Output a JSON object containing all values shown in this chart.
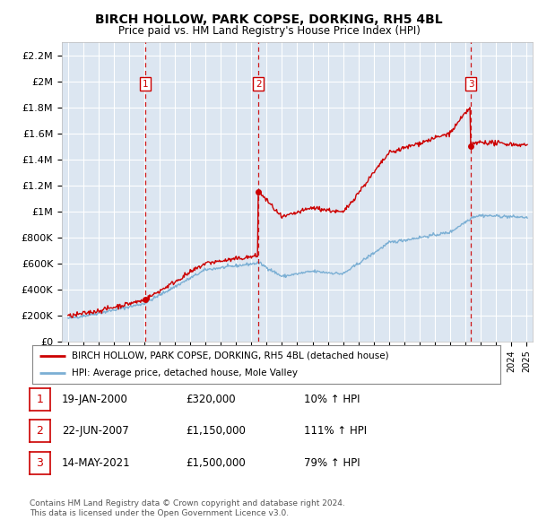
{
  "title": "BIRCH HOLLOW, PARK COPSE, DORKING, RH5 4BL",
  "subtitle": "Price paid vs. HM Land Registry's House Price Index (HPI)",
  "legend_line1": "BIRCH HOLLOW, PARK COPSE, DORKING, RH5 4BL (detached house)",
  "legend_line2": "HPI: Average price, detached house, Mole Valley",
  "footer1": "Contains HM Land Registry data © Crown copyright and database right 2024.",
  "footer2": "This data is licensed under the Open Government Licence v3.0.",
  "transactions": [
    {
      "num": 1,
      "date": "19-JAN-2000",
      "price": 320000,
      "pct": "10%",
      "x": 2000.05
    },
    {
      "num": 2,
      "date": "22-JUN-2007",
      "price": 1150000,
      "pct": "111%",
      "x": 2007.47
    },
    {
      "num": 3,
      "date": "14-MAY-2021",
      "price": 1500000,
      "pct": "79%",
      "x": 2021.37
    }
  ],
  "table_rows": [
    [
      "1",
      "19-JAN-2000",
      "£320,000",
      "10% ↑ HPI"
    ],
    [
      "2",
      "22-JUN-2007",
      "£1,150,000",
      "111% ↑ HPI"
    ],
    [
      "3",
      "14-MAY-2021",
      "£1,500,000",
      "79% ↑ HPI"
    ]
  ],
  "ylim": [
    0,
    2300000
  ],
  "xlim": [
    1994.6,
    2025.4
  ],
  "yticks": [
    0,
    200000,
    400000,
    600000,
    800000,
    1000000,
    1200000,
    1400000,
    1600000,
    1800000,
    2000000,
    2200000
  ],
  "ytick_labels": [
    "£0",
    "£200K",
    "£400K",
    "£600K",
    "£800K",
    "£1M",
    "£1.2M",
    "£1.4M",
    "£1.6M",
    "£1.8M",
    "£2M",
    "£2.2M"
  ],
  "bg_color": "#dce6f1",
  "red_color": "#cc0000",
  "blue_color": "#7bafd4",
  "grid_color": "#ffffff"
}
